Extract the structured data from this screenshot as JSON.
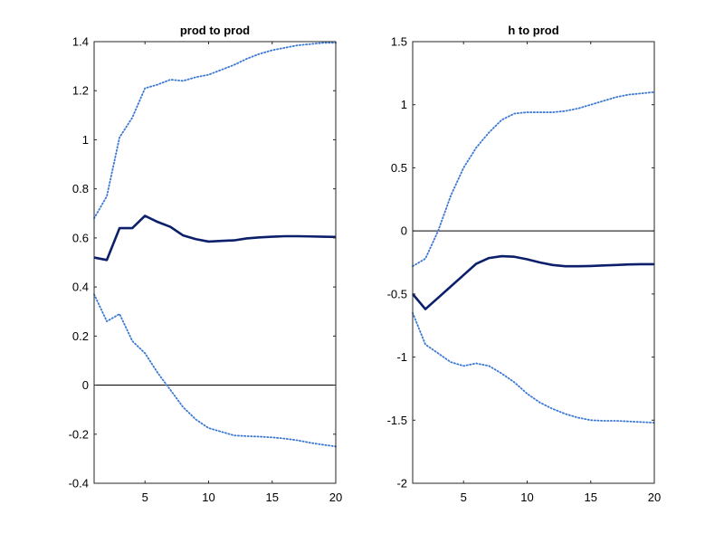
{
  "chart_data": [
    {
      "type": "line",
      "title": "prod to prod",
      "xlabel": "",
      "ylabel": "",
      "xlim": [
        1,
        20
      ],
      "ylim": [
        -0.4,
        1.4
      ],
      "xticks": [
        5,
        10,
        15,
        20
      ],
      "yticks": [
        -0.4,
        -0.2,
        0,
        0.2,
        0.4,
        0.6,
        0.8,
        1,
        1.2,
        1.4
      ],
      "ytick_labels": [
        "-0.4",
        "-0.2",
        "0",
        "0.2",
        "0.4",
        "0.6",
        "0.8",
        "1",
        "1.2",
        "1.4"
      ],
      "xtick_labels": [
        "5",
        "10",
        "15",
        "20"
      ],
      "zero_line": 0,
      "grid": false,
      "series": [
        {
          "name": "response",
          "style": "solid",
          "color": "#0b1f6b",
          "x": [
            1,
            2,
            3,
            4,
            5,
            6,
            7,
            8,
            9,
            10,
            11,
            12,
            13,
            14,
            15,
            16,
            17,
            18,
            19,
            20
          ],
          "values": [
            0.52,
            0.51,
            0.64,
            0.64,
            0.69,
            0.665,
            0.645,
            0.61,
            0.595,
            0.585,
            0.588,
            0.59,
            0.598,
            0.602,
            0.605,
            0.607,
            0.607,
            0.606,
            0.605,
            0.604
          ]
        },
        {
          "name": "upper band",
          "style": "dotted",
          "color": "#3a78d4",
          "x": [
            1,
            2,
            3,
            4,
            5,
            6,
            7,
            8,
            9,
            10,
            11,
            12,
            13,
            14,
            15,
            16,
            17,
            18,
            19,
            20
          ],
          "values": [
            0.68,
            0.77,
            1.01,
            1.09,
            1.21,
            1.225,
            1.245,
            1.24,
            1.255,
            1.265,
            1.285,
            1.305,
            1.33,
            1.35,
            1.365,
            1.375,
            1.385,
            1.39,
            1.395,
            1.395
          ]
        },
        {
          "name": "lower band",
          "style": "dotted",
          "color": "#3a78d4",
          "x": [
            1,
            2,
            3,
            4,
            5,
            6,
            7,
            8,
            9,
            10,
            11,
            12,
            13,
            14,
            15,
            16,
            17,
            18,
            19,
            20
          ],
          "values": [
            0.37,
            0.26,
            0.29,
            0.18,
            0.13,
            0.05,
            -0.02,
            -0.09,
            -0.14,
            -0.175,
            -0.19,
            -0.205,
            -0.208,
            -0.21,
            -0.213,
            -0.218,
            -0.225,
            -0.235,
            -0.243,
            -0.25
          ]
        }
      ]
    },
    {
      "type": "line",
      "title": "h to prod",
      "xlabel": "",
      "ylabel": "",
      "xlim": [
        1,
        20
      ],
      "ylim": [
        -2,
        1.5
      ],
      "xticks": [
        5,
        10,
        15,
        20
      ],
      "yticks": [
        -2,
        -1.5,
        -1,
        -0.5,
        0,
        0.5,
        1,
        1.5
      ],
      "ytick_labels": [
        "-2",
        "-1.5",
        "-1",
        "-0.5",
        "0",
        "0.5",
        "1",
        "1.5"
      ],
      "xtick_labels": [
        "5",
        "10",
        "15",
        "20"
      ],
      "zero_line": 0,
      "grid": false,
      "series": [
        {
          "name": "response",
          "style": "solid",
          "color": "#0b1f6b",
          "x": [
            1,
            2,
            3,
            4,
            5,
            6,
            7,
            8,
            9,
            10,
            11,
            12,
            13,
            14,
            15,
            16,
            17,
            18,
            19,
            20
          ],
          "values": [
            -0.5,
            -0.62,
            -0.53,
            -0.44,
            -0.35,
            -0.26,
            -0.215,
            -0.2,
            -0.205,
            -0.225,
            -0.25,
            -0.27,
            -0.28,
            -0.28,
            -0.278,
            -0.274,
            -0.27,
            -0.266,
            -0.264,
            -0.264
          ]
        },
        {
          "name": "upper band",
          "style": "dotted",
          "color": "#3a78d4",
          "x": [
            1,
            2,
            3,
            4,
            5,
            6,
            7,
            8,
            9,
            10,
            11,
            12,
            13,
            14,
            15,
            16,
            17,
            18,
            19,
            20
          ],
          "values": [
            -0.28,
            -0.22,
            0.0,
            0.28,
            0.5,
            0.66,
            0.78,
            0.88,
            0.93,
            0.94,
            0.94,
            0.94,
            0.95,
            0.97,
            1.0,
            1.03,
            1.06,
            1.08,
            1.09,
            1.1
          ]
        },
        {
          "name": "lower band",
          "style": "dotted",
          "color": "#3a78d4",
          "x": [
            1,
            2,
            3,
            4,
            5,
            6,
            7,
            8,
            9,
            10,
            11,
            12,
            13,
            14,
            15,
            16,
            17,
            18,
            19,
            20
          ],
          "values": [
            -0.65,
            -0.9,
            -0.97,
            -1.04,
            -1.07,
            -1.05,
            -1.07,
            -1.13,
            -1.2,
            -1.29,
            -1.36,
            -1.41,
            -1.45,
            -1.48,
            -1.5,
            -1.505,
            -1.505,
            -1.51,
            -1.515,
            -1.52
          ]
        }
      ]
    }
  ]
}
